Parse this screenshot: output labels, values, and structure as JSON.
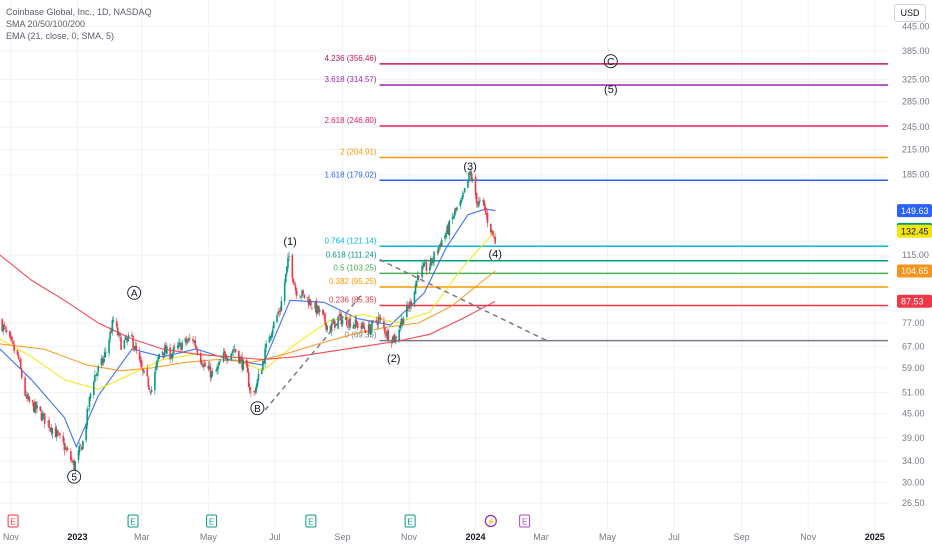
{
  "header": {
    "title": "Coinbase Global, Inc., 1D, NASDAQ",
    "indicators": [
      "SMA 20/50/100/200",
      "EMA (21, close, 0, SMA, 5)"
    ],
    "currency": "USD"
  },
  "chart_data": {
    "type": "candlestick",
    "y_scale": "log",
    "ylim": [
      24,
      520
    ],
    "xlim": [
      "2022-10-22",
      "2025-01-15"
    ],
    "x_ticks": [
      {
        "date": "2022-11-01",
        "label": "Nov",
        "bold": false
      },
      {
        "date": "2023-01-01",
        "label": "2023",
        "bold": true
      },
      {
        "date": "2023-03-01",
        "label": "Mar",
        "bold": false
      },
      {
        "date": "2023-05-01",
        "label": "May",
        "bold": false
      },
      {
        "date": "2023-07-01",
        "label": "Jul",
        "bold": false
      },
      {
        "date": "2023-09-01",
        "label": "Sep",
        "bold": false
      },
      {
        "date": "2023-11-01",
        "label": "Nov",
        "bold": false
      },
      {
        "date": "2024-01-01",
        "label": "2024",
        "bold": true
      },
      {
        "date": "2024-03-01",
        "label": "Mar",
        "bold": false
      },
      {
        "date": "2024-05-01",
        "label": "May",
        "bold": false
      },
      {
        "date": "2024-07-01",
        "label": "Jul",
        "bold": false
      },
      {
        "date": "2024-09-01",
        "label": "Sep",
        "bold": false
      },
      {
        "date": "2024-11-01",
        "label": "Nov",
        "bold": false
      },
      {
        "date": "2025-01-01",
        "label": "2025",
        "bold": true
      }
    ],
    "y_ticks": [
      {
        "value": 445,
        "label": "445.00"
      },
      {
        "value": 385,
        "label": "385.00"
      },
      {
        "value": 325,
        "label": "325.00"
      },
      {
        "value": 285,
        "label": "285.00"
      },
      {
        "value": 245,
        "label": "245.00"
      },
      {
        "value": 215,
        "label": "215.00"
      },
      {
        "value": 185,
        "label": "185.00"
      },
      {
        "value": 115,
        "label": "115.00"
      },
      {
        "value": 77,
        "label": "77.00"
      },
      {
        "value": 67,
        "label": "67.00"
      },
      {
        "value": 59,
        "label": "59.00"
      },
      {
        "value": 51,
        "label": "51.00"
      },
      {
        "value": 45,
        "label": "45.00"
      },
      {
        "value": 39,
        "label": "39.00"
      },
      {
        "value": 34,
        "label": "34.00"
      },
      {
        "value": 30,
        "label": "30.00"
      },
      {
        "value": 26.5,
        "label": "26.50"
      }
    ],
    "price_tags": [
      {
        "value": 149.63,
        "label": "149.63",
        "color": "#2962ff"
      },
      {
        "value": 133.88,
        "label": "133.88",
        "color": "#089981"
      },
      {
        "value": 132.45,
        "label": "132.45",
        "color": "#f5e50b",
        "text_color": "#131722"
      },
      {
        "value": 104.65,
        "label": "104.65",
        "color": "#f7931a"
      },
      {
        "value": 87.53,
        "label": "87.53",
        "color": "#f23645"
      }
    ],
    "fib_levels": [
      {
        "value": 356.46,
        "label": "4.236 (356.46)",
        "color": "#c2185b"
      },
      {
        "value": 314.57,
        "label": "3.618 (314.57)",
        "color": "#9c27b0"
      },
      {
        "value": 246.8,
        "label": "2.618 (246.80)",
        "color": "#e91e63"
      },
      {
        "value": 204.91,
        "label": "2 (204.91)",
        "color": "#ff9800"
      },
      {
        "value": 179.02,
        "label": "1.618 (179.02)",
        "color": "#2962ff"
      },
      {
        "value": 121.14,
        "label": "0.764 (121.14)",
        "color": "#00bcd4"
      },
      {
        "value": 111.24,
        "label": "0.618 (111.24)",
        "color": "#089981"
      },
      {
        "value": 103.25,
        "label": "0.5 (103.25)",
        "color": "#4caf50"
      },
      {
        "value": 95.25,
        "label": "0.382 (95.25)",
        "color": "#ff9800"
      },
      {
        "value": 85.35,
        "label": "0.236 (85.35)",
        "color": "#f23645"
      },
      {
        "value": 69.35,
        "label": "0 (69.35)",
        "color": "#787b86"
      }
    ],
    "fib_start_date": "2023-10-05",
    "wave_labels": [
      {
        "text": "5",
        "date": "2022-12-29",
        "price": 31.0,
        "circled": true
      },
      {
        "text": "A",
        "date": "2023-02-22",
        "price": 92.0,
        "circled": true
      },
      {
        "text": "B",
        "date": "2023-06-15",
        "price": 46.5,
        "circled": true
      },
      {
        "text": "(1)",
        "date": "2023-07-15",
        "price": 125.0,
        "circled": false
      },
      {
        "text": "(2)",
        "date": "2023-10-18",
        "price": 62.5,
        "circled": false
      },
      {
        "text": "(3)",
        "date": "2023-12-27",
        "price": 195.0,
        "circled": false
      },
      {
        "text": "(4)",
        "date": "2024-01-19",
        "price": 116.0,
        "circled": false
      },
      {
        "text": "C",
        "date": "2024-05-04",
        "price": 362.0,
        "circled": true
      },
      {
        "text": "(5)",
        "date": "2024-05-04",
        "price": 307.0,
        "circled": false
      }
    ],
    "trend_lines": [
      {
        "from": {
          "date": "2023-06-22",
          "price": 46.0
        },
        "to": {
          "date": "2023-09-20",
          "price": 92.0
        }
      },
      {
        "from": {
          "date": "2023-10-05",
          "price": 112.0
        },
        "to": {
          "date": "2024-03-08",
          "price": 69.0
        }
      }
    ],
    "event_markers": [
      {
        "date": "2022-11-03",
        "symbol": "E",
        "kind": "earnings"
      },
      {
        "date": "2023-02-21",
        "symbol": "E",
        "kind": "earnings"
      },
      {
        "date": "2023-05-04",
        "symbol": "E",
        "kind": "earnings"
      },
      {
        "date": "2023-08-03",
        "symbol": "E",
        "kind": "earnings"
      },
      {
        "date": "2023-11-02",
        "symbol": "E",
        "kind": "earnings"
      },
      {
        "date": "2024-01-15",
        "symbol": "⚡",
        "kind": "event"
      },
      {
        "date": "2024-02-15",
        "symbol": "E",
        "kind": "upcoming"
      }
    ],
    "series": [
      {
        "id": "price",
        "type": "candles",
        "points": [
          [
            "2022-10-22",
            78
          ],
          [
            "2022-11-08",
            62
          ],
          [
            "2022-11-15",
            49
          ],
          [
            "2022-11-25",
            46
          ],
          [
            "2022-12-10",
            41
          ],
          [
            "2022-12-20",
            37
          ],
          [
            "2022-12-29",
            33
          ],
          [
            "2023-01-06",
            38
          ],
          [
            "2023-01-15",
            55
          ],
          [
            "2023-01-25",
            62
          ],
          [
            "2023-02-03",
            78
          ],
          [
            "2023-02-10",
            68
          ],
          [
            "2023-02-20",
            70
          ],
          [
            "2023-03-02",
            57
          ],
          [
            "2023-03-10",
            52
          ],
          [
            "2023-03-18",
            66
          ],
          [
            "2023-03-28",
            64
          ],
          [
            "2023-04-07",
            68
          ],
          [
            "2023-04-17",
            70
          ],
          [
            "2023-04-27",
            60
          ],
          [
            "2023-05-06",
            56
          ],
          [
            "2023-05-15",
            63
          ],
          [
            "2023-05-25",
            66
          ],
          [
            "2023-06-05",
            58
          ],
          [
            "2023-06-10",
            49
          ],
          [
            "2023-06-18",
            58
          ],
          [
            "2023-06-26",
            72
          ],
          [
            "2023-07-06",
            84
          ],
          [
            "2023-07-14",
            114
          ],
          [
            "2023-07-20",
            94
          ],
          [
            "2023-08-01",
            88
          ],
          [
            "2023-08-12",
            81
          ],
          [
            "2023-08-20",
            74
          ],
          [
            "2023-08-28",
            79
          ],
          [
            "2023-09-05",
            78
          ],
          [
            "2023-09-15",
            76
          ],
          [
            "2023-09-25",
            74
          ],
          [
            "2023-10-04",
            79
          ],
          [
            "2023-10-12",
            72
          ],
          [
            "2023-10-19",
            70
          ],
          [
            "2023-10-25",
            78
          ],
          [
            "2023-11-02",
            86
          ],
          [
            "2023-11-10",
            104
          ],
          [
            "2023-11-20",
            108
          ],
          [
            "2023-11-30",
            124
          ],
          [
            "2023-12-07",
            134
          ],
          [
            "2023-12-13",
            148
          ],
          [
            "2023-12-19",
            156
          ],
          [
            "2023-12-27",
            187
          ],
          [
            "2024-01-03",
            156
          ],
          [
            "2024-01-08",
            155
          ],
          [
            "2024-01-12",
            142
          ],
          [
            "2024-01-19",
            125
          ]
        ]
      },
      {
        "id": "sma20",
        "color": "#2962ff",
        "points": [
          [
            "2022-10-22",
            66
          ],
          [
            "2022-11-20",
            55
          ],
          [
            "2022-12-20",
            44
          ],
          [
            "2022-12-31",
            37
          ],
          [
            "2023-01-20",
            50
          ],
          [
            "2023-02-20",
            66
          ],
          [
            "2023-03-20",
            63
          ],
          [
            "2023-04-20",
            66
          ],
          [
            "2023-05-20",
            62
          ],
          [
            "2023-06-20",
            60
          ],
          [
            "2023-07-15",
            88
          ],
          [
            "2023-08-15",
            87
          ],
          [
            "2023-09-15",
            79
          ],
          [
            "2023-10-15",
            76
          ],
          [
            "2023-11-15",
            92
          ],
          [
            "2023-12-05",
            120
          ],
          [
            "2023-12-25",
            146
          ],
          [
            "2024-01-10",
            151
          ],
          [
            "2024-01-19",
            149.6
          ]
        ]
      },
      {
        "id": "sma50",
        "color": "#f5e50b",
        "points": [
          [
            "2022-10-22",
            70
          ],
          [
            "2022-11-20",
            63
          ],
          [
            "2022-12-20",
            55
          ],
          [
            "2023-01-20",
            52
          ],
          [
            "2023-02-20",
            57
          ],
          [
            "2023-03-20",
            62
          ],
          [
            "2023-04-20",
            64
          ],
          [
            "2023-05-20",
            63
          ],
          [
            "2023-06-20",
            58
          ],
          [
            "2023-07-20",
            68
          ],
          [
            "2023-08-20",
            78
          ],
          [
            "2023-09-20",
            81
          ],
          [
            "2023-10-20",
            77
          ],
          [
            "2023-11-20",
            82
          ],
          [
            "2023-12-20",
            107
          ],
          [
            "2024-01-19",
            132.5
          ]
        ]
      },
      {
        "id": "sma100",
        "color": "#f7931a",
        "points": [
          [
            "2022-10-22",
            68
          ],
          [
            "2022-12-01",
            66
          ],
          [
            "2023-01-10",
            60
          ],
          [
            "2023-02-10",
            58
          ],
          [
            "2023-03-10",
            59
          ],
          [
            "2023-04-10",
            61
          ],
          [
            "2023-05-10",
            62
          ],
          [
            "2023-06-10",
            61
          ],
          [
            "2023-07-10",
            64
          ],
          [
            "2023-08-10",
            68
          ],
          [
            "2023-09-10",
            72
          ],
          [
            "2023-10-10",
            75
          ],
          [
            "2023-11-10",
            77
          ],
          [
            "2023-12-10",
            85
          ],
          [
            "2024-01-19",
            104.7
          ]
        ]
      },
      {
        "id": "sma200",
        "color": "#f23645",
        "points": [
          [
            "2022-10-22",
            115
          ],
          [
            "2022-11-20",
            99
          ],
          [
            "2022-12-20",
            88
          ],
          [
            "2023-01-20",
            77
          ],
          [
            "2023-02-20",
            70
          ],
          [
            "2023-03-20",
            66
          ],
          [
            "2023-04-20",
            64
          ],
          [
            "2023-05-20",
            63
          ],
          [
            "2023-06-20",
            62
          ],
          [
            "2023-07-20",
            63
          ],
          [
            "2023-08-20",
            65
          ],
          [
            "2023-09-20",
            67
          ],
          [
            "2023-10-20",
            69
          ],
          [
            "2023-11-20",
            72
          ],
          [
            "2023-12-20",
            79
          ],
          [
            "2024-01-19",
            87.5
          ]
        ]
      }
    ]
  }
}
